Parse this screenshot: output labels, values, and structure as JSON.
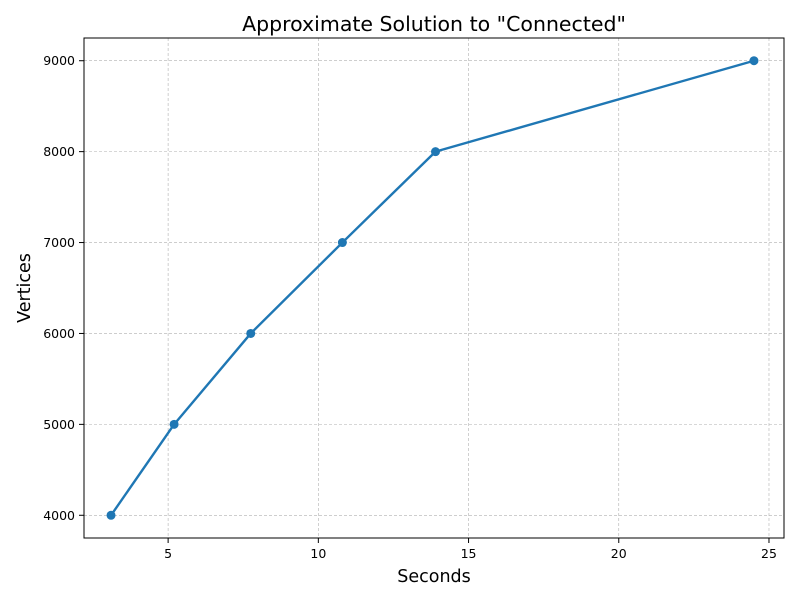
{
  "chart_data": {
    "type": "line",
    "title": "Approximate Solution to \"Connected\"",
    "xlabel": "Seconds",
    "ylabel": "Vertices",
    "xlim": [
      2.2,
      25.5
    ],
    "ylim": [
      3750,
      9250
    ],
    "xticks": [
      5,
      10,
      15,
      20,
      25
    ],
    "yticks": [
      4000,
      5000,
      6000,
      7000,
      8000,
      9000
    ],
    "xtick_labels": [
      "5",
      "10",
      "15",
      "20",
      "25"
    ],
    "ytick_labels": [
      "4000",
      "5000",
      "6000",
      "7000",
      "8000",
      "9000"
    ],
    "grid": true,
    "series": [
      {
        "name": "Vertices",
        "color": "#1f77b4",
        "marker": "circle",
        "x": [
          3.1,
          5.2,
          7.75,
          10.8,
          13.9,
          24.5
        ],
        "y": [
          4000,
          5000,
          6000,
          7000,
          8000,
          9000
        ]
      }
    ]
  }
}
